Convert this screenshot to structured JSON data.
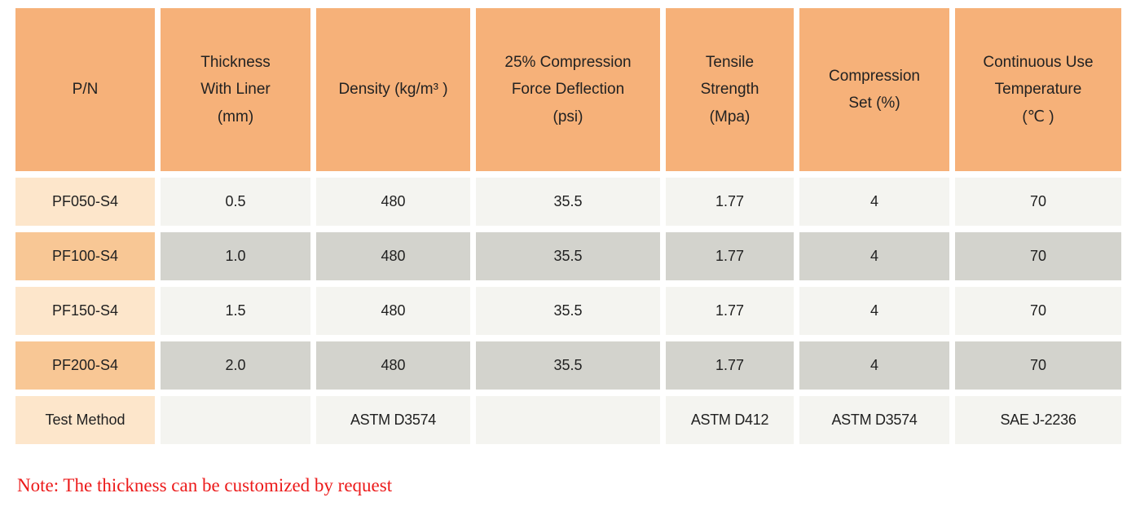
{
  "table": {
    "headers": [
      "P/N",
      "Thickness\nWith Liner\n(mm)",
      "Density (kg/m³ )",
      "25% Compression\nForce Deflection\n(psi)",
      "Tensile\nStrength\n(Mpa)",
      "Compression\nSet (%)",
      "Continuous Use\nTemperature\n(℃ )"
    ],
    "rows": [
      {
        "cells": [
          "PF050-S4",
          "0.5",
          "480",
          "35.5",
          "1.77",
          "4",
          "70"
        ]
      },
      {
        "cells": [
          "PF100-S4",
          "1.0",
          "480",
          "35.5",
          "1.77",
          "4",
          "70"
        ]
      },
      {
        "cells": [
          "PF150-S4",
          "1.5",
          "480",
          "35.5",
          "1.77",
          "4",
          "70"
        ]
      },
      {
        "cells": [
          "PF200-S4",
          "2.0",
          "480",
          "35.5",
          "1.77",
          "4",
          "70"
        ]
      },
      {
        "cells": [
          "Test Method",
          "",
          "ASTM D3574",
          "",
          "ASTM D412",
          "ASTM D3574",
          "SAE J-2236"
        ]
      }
    ]
  },
  "note": {
    "text": "Note: The thickness can be customized by request"
  },
  "colors": {
    "header_orange": "#f6b179",
    "pn_light_peach": "#fde6cb",
    "pn_medium_orange": "#f8c795",
    "row_light_gray": "#f4f4f0",
    "row_dark_gray": "#d3d3cd",
    "note_red": "#ec1a1a",
    "text": "#212121",
    "background": "#ffffff"
  }
}
